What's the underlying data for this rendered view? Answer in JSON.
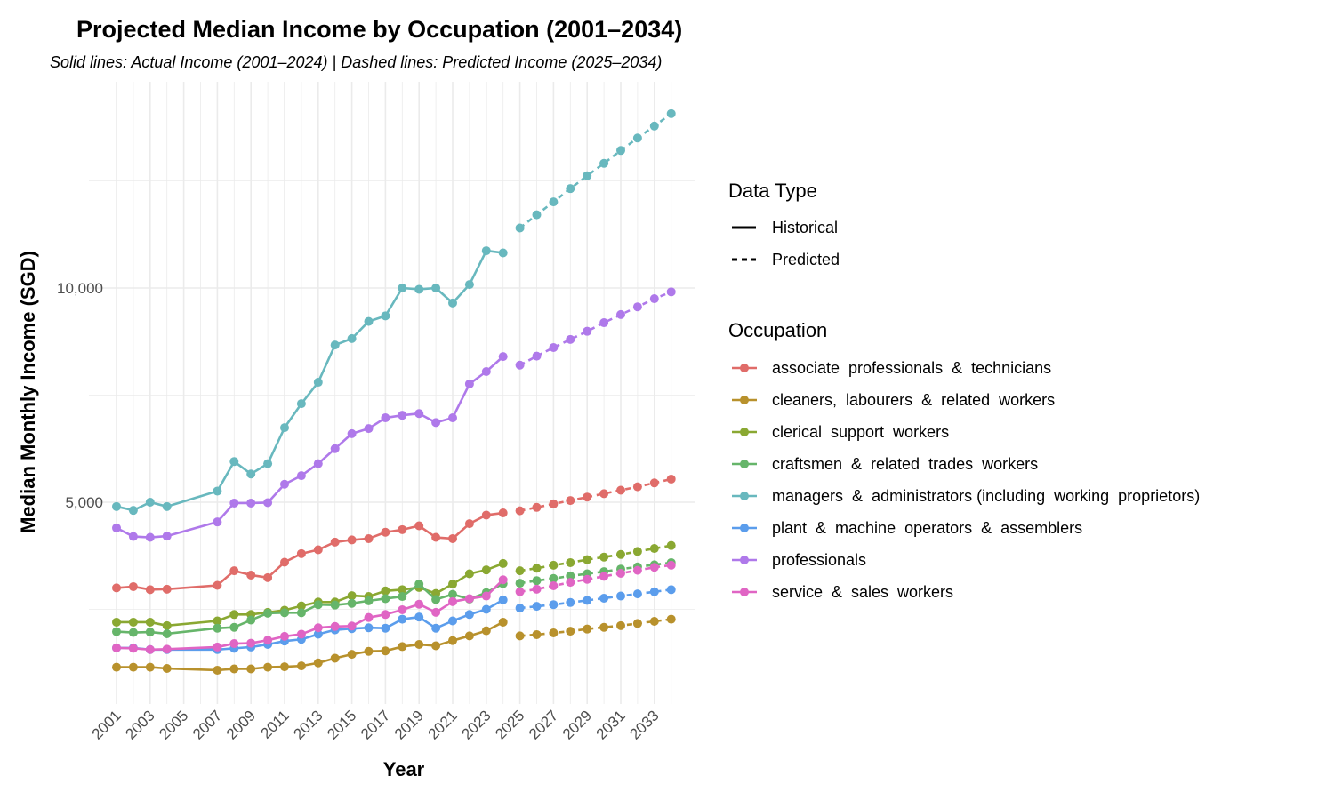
{
  "chart_data": {
    "type": "line",
    "title": "Projected Median Income by Occupation (2001–2034)",
    "subtitle": "Solid lines: Actual Income (2001–2024) | Dashed lines: Predicted Income (2025–2034)",
    "xlabel": "Year",
    "ylabel": "Median Monthly Income (SGD)",
    "xlim": [
      2001,
      2034
    ],
    "ylim": [
      500,
      14500
    ],
    "x_ticks": [
      2001,
      2003,
      2005,
      2007,
      2009,
      2011,
      2013,
      2015,
      2017,
      2019,
      2021,
      2023,
      2025,
      2027,
      2029,
      2031,
      2033
    ],
    "y_ticks": [
      5000,
      10000
    ],
    "y_tick_labels": [
      "5,000",
      "10,000"
    ],
    "grid": true,
    "legend_position": "right",
    "legend_linetype": {
      "title": "Data Type",
      "entries": [
        "Historical",
        "Predicted"
      ]
    },
    "legend_color_title": "Occupation",
    "historical_years": [
      2001,
      2002,
      2003,
      2004,
      2007,
      2008,
      2009,
      2010,
      2011,
      2012,
      2013,
      2014,
      2015,
      2016,
      2017,
      2018,
      2019,
      2020,
      2021,
      2022,
      2023,
      2024
    ],
    "predicted_years": [
      2025,
      2026,
      2027,
      2028,
      2029,
      2030,
      2031,
      2032,
      2033,
      2034
    ],
    "series": [
      {
        "name": "associate  professionals  &  technicians",
        "color": "#E06C69",
        "historical": [
          3000,
          3030,
          2960,
          2970,
          3060,
          3400,
          3300,
          3240,
          3600,
          3800,
          3890,
          4070,
          4120,
          4150,
          4300,
          4360,
          4450,
          4180,
          4150,
          4500,
          4700,
          4750
        ],
        "predicted": [
          4800,
          4880,
          4960,
          5040,
          5120,
          5200,
          5280,
          5360,
          5450,
          5540
        ]
      },
      {
        "name": "cleaners,  labourers  &  related  workers",
        "color": "#B8912C",
        "historical": [
          1150,
          1150,
          1150,
          1120,
          1080,
          1110,
          1110,
          1150,
          1160,
          1180,
          1250,
          1360,
          1450,
          1520,
          1530,
          1630,
          1680,
          1650,
          1770,
          1880,
          2000,
          2200
        ],
        "predicted": [
          1880,
          1910,
          1950,
          1990,
          2040,
          2080,
          2120,
          2170,
          2220,
          2270
        ]
      },
      {
        "name": "clerical  support  workers",
        "color": "#8AA832",
        "historical": [
          2200,
          2200,
          2200,
          2120,
          2230,
          2380,
          2380,
          2430,
          2480,
          2580,
          2670,
          2670,
          2820,
          2800,
          2930,
          2960,
          3010,
          2870,
          3090,
          3330,
          3420,
          3570
        ],
        "predicted": [
          3400,
          3460,
          3530,
          3590,
          3660,
          3720,
          3780,
          3850,
          3920,
          3990
        ]
      },
      {
        "name": "craftsmen  &  related  trades  workers",
        "color": "#66B56A",
        "historical": [
          1980,
          1960,
          1970,
          1930,
          2060,
          2080,
          2250,
          2410,
          2420,
          2420,
          2610,
          2600,
          2640,
          2700,
          2750,
          2800,
          3090,
          2730,
          2850,
          2740,
          2890,
          3100
        ],
        "predicted": [
          3110,
          3170,
          3220,
          3280,
          3330,
          3380,
          3440,
          3490,
          3540,
          3590
        ]
      },
      {
        "name": "managers  &  administrators (including  working  proprietors)",
        "color": "#68B8BE",
        "historical": [
          4900,
          4810,
          5000,
          4900,
          5260,
          5950,
          5660,
          5900,
          6740,
          7300,
          7800,
          8670,
          8820,
          9220,
          9350,
          10000,
          9970,
          10000,
          9650,
          10080,
          10870,
          10820
        ],
        "predicted": [
          11400,
          11710,
          12010,
          12320,
          12620,
          12910,
          13210,
          13500,
          13780,
          14070
        ]
      },
      {
        "name": "plant  &  machine  operators  &  assemblers",
        "color": "#5B9DEC",
        "historical": [
          1600,
          1600,
          1560,
          1560,
          1560,
          1590,
          1620,
          1680,
          1760,
          1800,
          1920,
          2020,
          2050,
          2070,
          2060,
          2270,
          2320,
          2060,
          2230,
          2380,
          2500,
          2720
        ],
        "predicted": [
          2530,
          2570,
          2610,
          2660,
          2710,
          2760,
          2810,
          2860,
          2910,
          2960
        ]
      },
      {
        "name": "professionals",
        "color": "#AF79EA",
        "historical": [
          4400,
          4200,
          4180,
          4210,
          4540,
          4980,
          4980,
          4990,
          5420,
          5620,
          5900,
          6250,
          6600,
          6720,
          6970,
          7030,
          7070,
          6860,
          6970,
          7760,
          8050,
          8400
        ],
        "predicted": [
          8200,
          8410,
          8610,
          8800,
          8990,
          9190,
          9380,
          9560,
          9750,
          9910
        ]
      },
      {
        "name": "service  &  sales  workers",
        "color": "#E065C4",
        "historical": [
          1600,
          1590,
          1560,
          1570,
          1620,
          1700,
          1710,
          1780,
          1870,
          1920,
          2070,
          2100,
          2110,
          2310,
          2380,
          2490,
          2620,
          2430,
          2680,
          2750,
          2810,
          3190
        ],
        "predicted": [
          2910,
          2970,
          3050,
          3130,
          3200,
          3270,
          3340,
          3410,
          3480,
          3530
        ]
      }
    ]
  }
}
